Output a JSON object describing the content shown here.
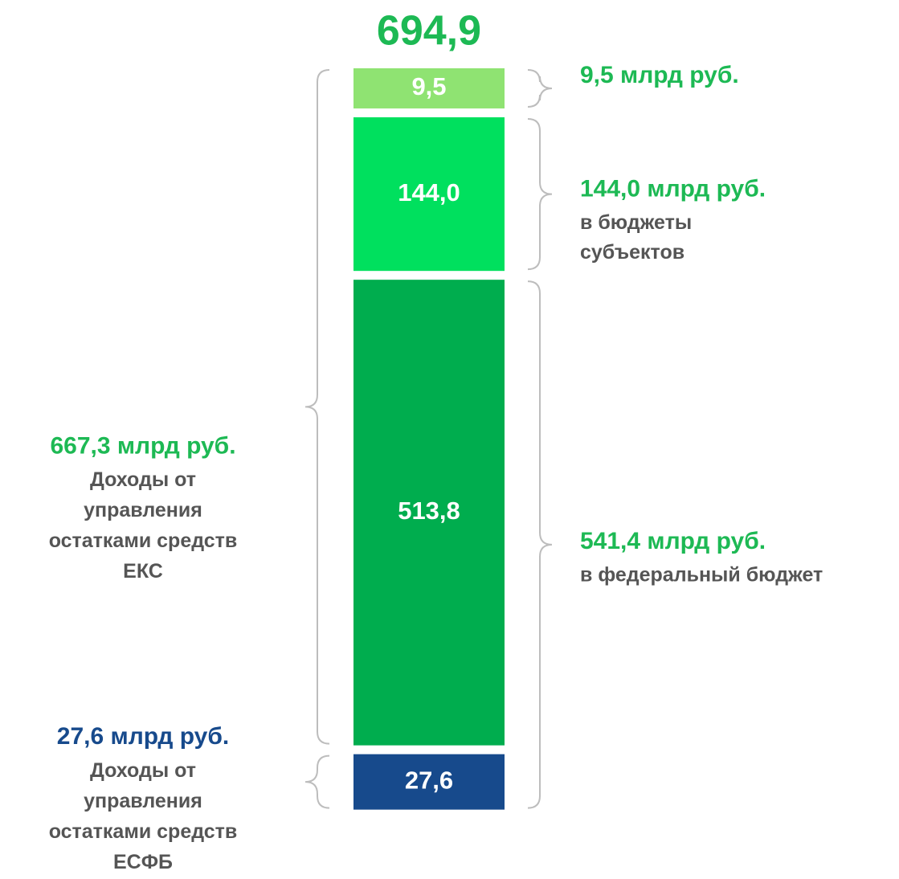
{
  "chart_data": {
    "type": "stacked_bar",
    "total": "694,9",
    "values": [
      27.6,
      513.8,
      144.0,
      9.5
    ],
    "value_labels": [
      "27,6",
      "513,8",
      "144,0",
      "9,5"
    ],
    "colors": [
      "#174a8c",
      "#00ad4e",
      "#00e05e",
      "#8fe372"
    ],
    "annotations": [
      {
        "title": "27,6 млрд руб.",
        "color": "#174a8c",
        "lines": [
          "Доходы от",
          "управления",
          "остатками средств",
          "ЕСФБ"
        ]
      },
      {
        "title": "667,3 млрд руб.",
        "color": "#1db954",
        "lines": [
          "Доходы от",
          "управления",
          "остатками средств",
          "ЕКС"
        ]
      },
      {
        "title": "9,5 млрд руб.",
        "color": "#1db954",
        "lines": []
      },
      {
        "title": "144,0 млрд руб.",
        "color": "#1db954",
        "lines": [
          "в бюджеты",
          "субъектов"
        ]
      },
      {
        "title": "541,4 млрд руб.",
        "color": "#1db954",
        "lines": [
          "в федеральный бюджет"
        ]
      }
    ]
  }
}
